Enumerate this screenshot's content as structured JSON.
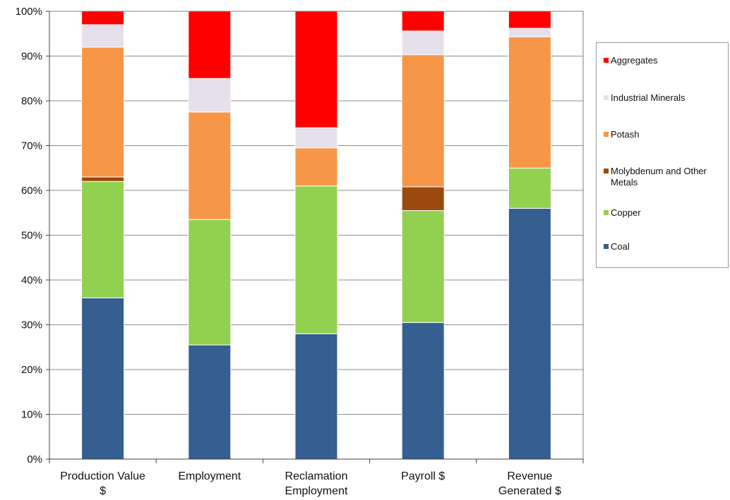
{
  "chart_data": {
    "type": "bar",
    "stacked": true,
    "percent": true,
    "categories": [
      "Production Value $",
      "Employment",
      "Reclamation Employment",
      "Payroll $",
      "Revenue Generated $"
    ],
    "category_labels": [
      [
        "Production Value",
        "$"
      ],
      [
        "Employment"
      ],
      [
        "Reclamation",
        "Employment"
      ],
      [
        "Payroll $"
      ],
      [
        "Revenue",
        "Generated $"
      ]
    ],
    "ylim": [
      0,
      100
    ],
    "yticks": [
      0,
      10,
      20,
      30,
      40,
      50,
      60,
      70,
      80,
      90,
      100
    ],
    "ytick_labels": [
      "0%",
      "10%",
      "20%",
      "30%",
      "40%",
      "50%",
      "60%",
      "70%",
      "80%",
      "90%",
      "100%"
    ],
    "grid": true,
    "legend_position": "right",
    "series": [
      {
        "name": "Coal",
        "color": "#355e91",
        "values": [
          36,
          25.5,
          28,
          30.5,
          56
        ]
      },
      {
        "name": "Copper",
        "color": "#92d050",
        "values": [
          26,
          28,
          33,
          25,
          9
        ]
      },
      {
        "name": "Molybdenum and Other Metals",
        "color": "#9a4a0e",
        "values": [
          1,
          0,
          0,
          5.3,
          0
        ]
      },
      {
        "name": "Potash",
        "color": "#f79646",
        "values": [
          29,
          24,
          8.5,
          29.5,
          29.3
        ]
      },
      {
        "name": "Industrial Minerals",
        "color": "#e6e0ec",
        "values": [
          5,
          7.5,
          4.5,
          5.3,
          1.9
        ]
      },
      {
        "name": "Aggregates",
        "color": "#ff0000",
        "values": [
          3,
          15,
          26,
          4.4,
          3.8
        ]
      }
    ],
    "legend_order": [
      "Aggregates",
      "Industrial Minerals",
      "Potash",
      "Molybdenum and Other Metals",
      "Copper",
      "Coal"
    ]
  }
}
